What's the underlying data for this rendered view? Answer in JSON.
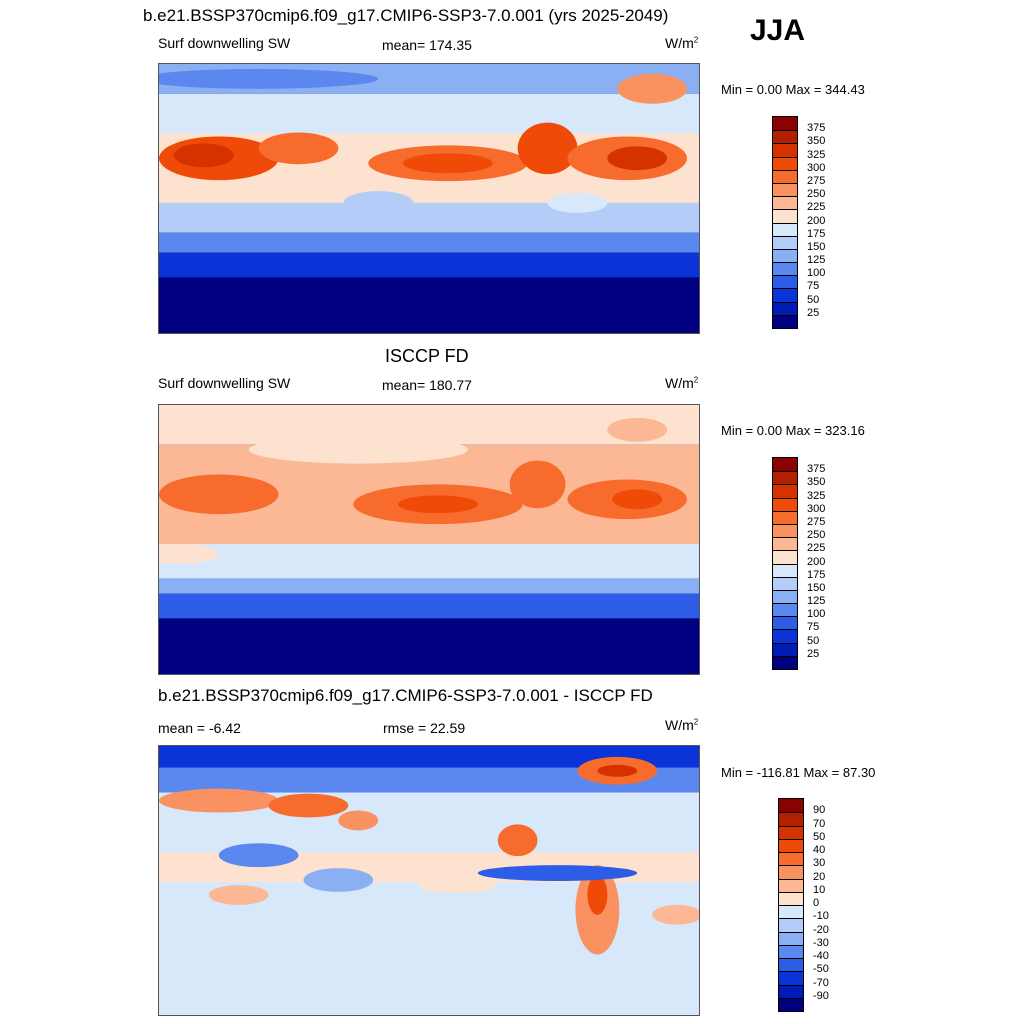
{
  "season": "JJA",
  "panel1": {
    "title": "b.e21.BSSP370cmip6.f09_g17.CMIP6-SSP3-7.0.001 (yrs 2025-2049)",
    "left_label": "Surf downwelling SW",
    "center_label": "mean= 174.35",
    "units": "W/m",
    "units_sup": "2",
    "minmax": "Min =   0.00 Max = 344.43"
  },
  "panel2": {
    "title": "ISCCP FD",
    "left_label": "Surf downwelling SW",
    "center_label": "mean= 180.77",
    "units": "W/m",
    "units_sup": "2",
    "minmax": "Min =   0.00 Max = 323.16"
  },
  "panel3": {
    "title": "b.e21.BSSP370cmip6.f09_g17.CMIP6-SSP3-7.0.001 - ISCCP FD",
    "left_label": "mean =  -6.42",
    "center_label": "rmse =  22.59",
    "units": "W/m",
    "units_sup": "2",
    "minmax": "Min = -116.81 Max =  87.30"
  },
  "colorbar_abs": {
    "labels": [
      "375",
      "350",
      "325",
      "300",
      "275",
      "250",
      "225",
      "200",
      "175",
      "150",
      "125",
      "100",
      "75",
      "50",
      "25"
    ],
    "colors": [
      "#8b0000",
      "#b22000",
      "#d63200",
      "#f04a08",
      "#f76b2d",
      "#fa9160",
      "#fcb894",
      "#fde3cf",
      "#d8e8fb",
      "#b4cdf8",
      "#8aaff3",
      "#5b88ee",
      "#2d5de6",
      "#0b34d8",
      "#001cb4",
      "#000080"
    ]
  },
  "colorbar_diff": {
    "labels": [
      "90",
      "70",
      "50",
      "40",
      "30",
      "20",
      "10",
      "0",
      "-10",
      "-20",
      "-30",
      "-40",
      "-50",
      "-70",
      "-90"
    ],
    "colors": [
      "#8b0000",
      "#b22000",
      "#d63200",
      "#f04a08",
      "#f76b2d",
      "#fa9160",
      "#fcb894",
      "#fde3cf",
      "#d8e8fb",
      "#b4cdf8",
      "#8aaff3",
      "#5b88ee",
      "#2d5de6",
      "#0b34d8",
      "#001cb4",
      "#000080"
    ]
  },
  "icons": {
    "map": "global-map-plot"
  }
}
